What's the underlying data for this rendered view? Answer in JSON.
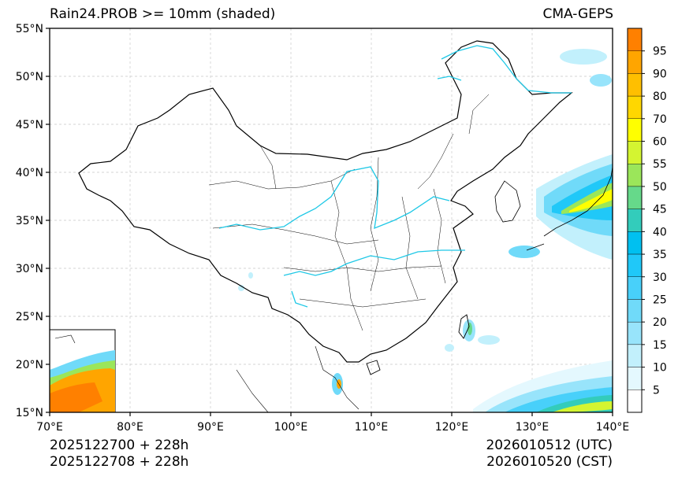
{
  "header": {
    "title_left": "Rain24.PROB >= 10mm (shaded)",
    "title_right": "CMA-GEPS"
  },
  "axes": {
    "lat_labels": [
      "55°N",
      "50°N",
      "45°N",
      "40°N",
      "35°N",
      "30°N",
      "25°N",
      "20°N",
      "15°N"
    ],
    "lon_labels": [
      "70°E",
      "80°E",
      "90°E",
      "100°E",
      "110°E",
      "120°E",
      "130°E",
      "140°E"
    ],
    "lat_values": [
      55,
      50,
      45,
      40,
      35,
      30,
      25,
      20,
      15
    ],
    "lon_values": [
      70,
      80,
      90,
      100,
      110,
      120,
      130,
      140
    ]
  },
  "colorbar": {
    "levels": [
      "95",
      "90",
      "80",
      "70",
      "60",
      "55",
      "50",
      "45",
      "40",
      "35",
      "30",
      "25",
      "20",
      "15",
      "10",
      "5"
    ],
    "colors": [
      "#ff8000",
      "#ffa500",
      "#ffbf00",
      "#ffd700",
      "#ffff00",
      "#d4f531",
      "#9be65a",
      "#66d98a",
      "#33ccbb",
      "#00c0f0",
      "#20c8f8",
      "#48d0fa",
      "#70daf9",
      "#98e4fb",
      "#c2f0fc",
      "#e4f8fe",
      "#ffffff"
    ]
  },
  "footer": {
    "init_utc": "2025122700 + 228h",
    "init_cst": "2025122708 + 228h",
    "valid_utc": "2026010512 (UTC)",
    "valid_cst": "2026010520 (CST)"
  }
}
